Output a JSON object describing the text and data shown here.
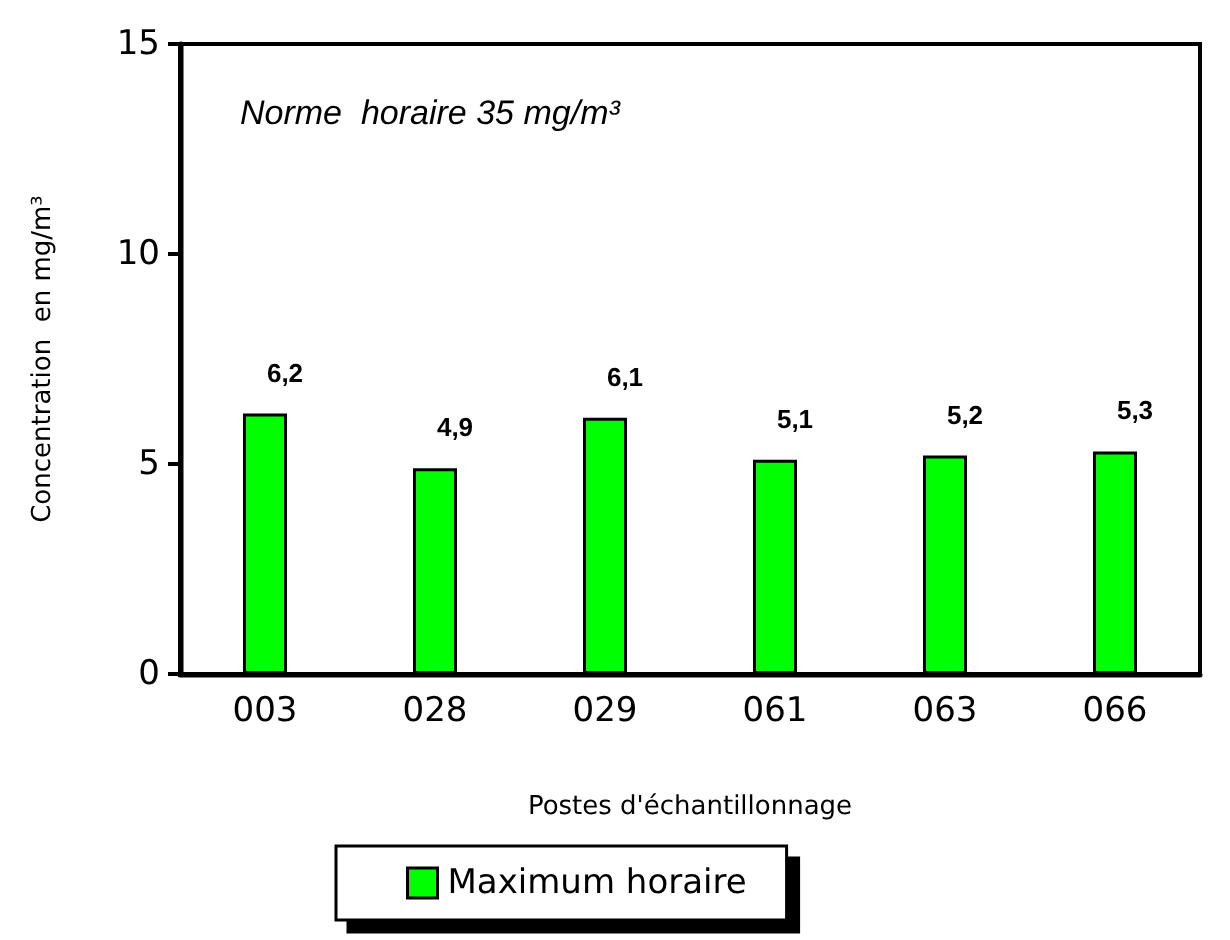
{
  "chart_data": {
    "type": "bar",
    "categories": [
      "003",
      "028",
      "029",
      "061",
      "063",
      "066"
    ],
    "series": [
      {
        "name": "Maximum horaire",
        "color": "#00ff00",
        "values": [
          6.2,
          4.9,
          6.1,
          5.1,
          5.2,
          5.3
        ],
        "value_labels": [
          "6,2",
          "4,9",
          "6,1",
          "5,1",
          "5,2",
          "5,3"
        ]
      }
    ],
    "xlabel": "Postes d'échantillonnage",
    "ylabel": "Concentration  en mg/m³",
    "annotations": [
      "Norme  horaire 35 mg/m³"
    ],
    "ylim": [
      0,
      15
    ],
    "yticks": [
      0,
      5,
      10,
      15
    ],
    "grid": false,
    "legend": "bottom"
  }
}
